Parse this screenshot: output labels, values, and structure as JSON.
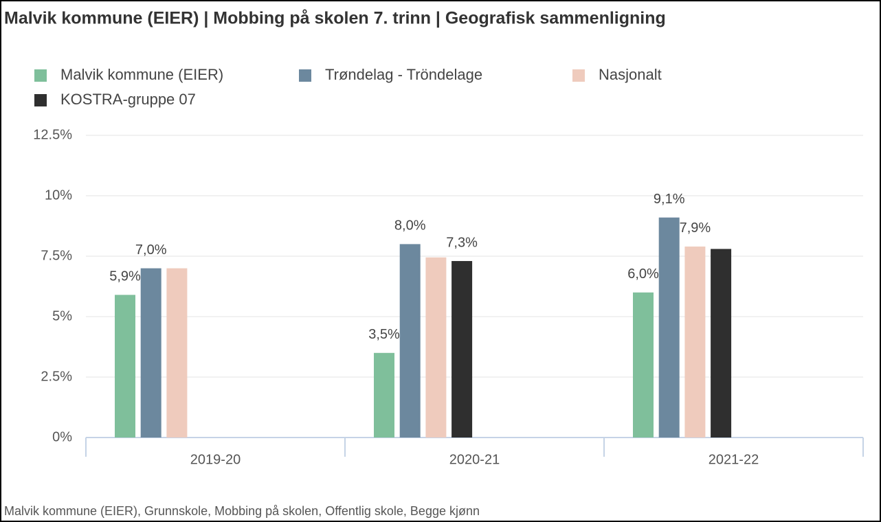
{
  "chart_data": {
    "type": "bar",
    "title": "Malvik kommune (EIER) | Mobbing på skolen 7. trinn | Geografisk sammenligning",
    "footnote": "Malvik kommune (EIER), Grunnskole, Mobbing på skolen, Offentlig skole, Begge kjønn",
    "categories": [
      "2019-20",
      "2020-21",
      "2021-22"
    ],
    "series": [
      {
        "name": "Malvik kommune (EIER)",
        "color": "#7fbf9b",
        "values": [
          5.9,
          3.5,
          6.0
        ],
        "value_labels": [
          "5,9%",
          "3,5%",
          "6,0%"
        ]
      },
      {
        "name": "Trøndelag - Tröndelage",
        "color": "#6c889e",
        "values": [
          7.0,
          8.0,
          9.1
        ],
        "value_labels": [
          "7,0%",
          "8,0%",
          "9,1%"
        ]
      },
      {
        "name": "Nasjonalt",
        "color": "#efcbbd",
        "values": [
          7.0,
          7.45,
          7.9
        ],
        "value_labels": [
          null,
          null,
          "7,9%"
        ]
      },
      {
        "name": "KOSTRA-gruppe 07",
        "color": "#2f2f2f",
        "values": [
          null,
          7.3,
          7.8
        ],
        "value_labels": [
          null,
          "7,3%",
          null
        ]
      }
    ],
    "ylim": [
      0,
      12.5
    ],
    "yticks": [
      {
        "value": 0,
        "label": "0%"
      },
      {
        "value": 2.5,
        "label": "2.5%"
      },
      {
        "value": 5,
        "label": "5%"
      },
      {
        "value": 7.5,
        "label": "7.5%"
      },
      {
        "value": 10,
        "label": "10%"
      },
      {
        "value": 12.5,
        "label": "12.5%"
      }
    ],
    "grid": true
  }
}
